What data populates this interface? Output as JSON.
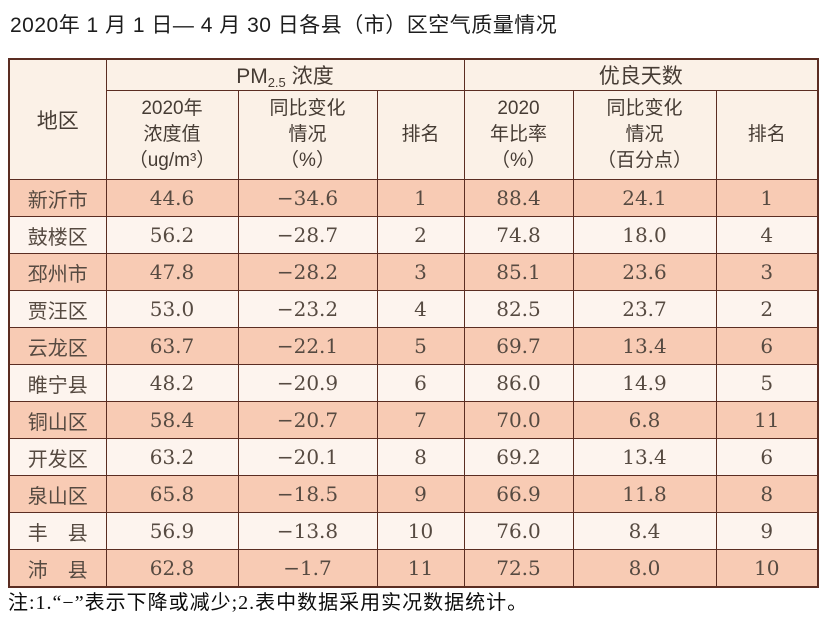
{
  "title": "2020年 1 月 1 日— 4 月 30 日各县（市）区空气质量情况",
  "table": {
    "header": {
      "region": "地区",
      "pm_group": {
        "prefix": "PM",
        "sub": "2.5",
        "suffix": "浓度"
      },
      "good_group": "优良天数",
      "pm_value": {
        "l1": "2020年",
        "l2": "浓度值",
        "l3": "（ug/m³）"
      },
      "pm_change": {
        "l1": "同比变化",
        "l2": "情况",
        "l3": "（%）"
      },
      "pm_rank": "排名",
      "good_ratio": {
        "l1": "2020",
        "l2": "年比率",
        "l3": "（%）"
      },
      "good_change": {
        "l1": "同比变化",
        "l2": "情况",
        "l3": "（百分点）"
      },
      "good_rank": "排名"
    },
    "rows": [
      {
        "region": "新沂市",
        "pm_value": "44.6",
        "pm_change": "−34.6",
        "pm_rank": "1",
        "good_ratio": "88.4",
        "good_change": "24.1",
        "good_rank": "1"
      },
      {
        "region": "鼓楼区",
        "pm_value": "56.2",
        "pm_change": "−28.7",
        "pm_rank": "2",
        "good_ratio": "74.8",
        "good_change": "18.0",
        "good_rank": "4"
      },
      {
        "region": "邳州市",
        "pm_value": "47.8",
        "pm_change": "−28.2",
        "pm_rank": "3",
        "good_ratio": "85.1",
        "good_change": "23.6",
        "good_rank": "3"
      },
      {
        "region": "贾汪区",
        "pm_value": "53.0",
        "pm_change": "−23.2",
        "pm_rank": "4",
        "good_ratio": "82.5",
        "good_change": "23.7",
        "good_rank": "2"
      },
      {
        "region": "云龙区",
        "pm_value": "63.7",
        "pm_change": "−22.1",
        "pm_rank": "5",
        "good_ratio": "69.7",
        "good_change": "13.4",
        "good_rank": "6"
      },
      {
        "region": "睢宁县",
        "pm_value": "48.2",
        "pm_change": "−20.9",
        "pm_rank": "6",
        "good_ratio": "86.0",
        "good_change": "14.9",
        "good_rank": "5"
      },
      {
        "region": "铜山区",
        "pm_value": "58.4",
        "pm_change": "−20.7",
        "pm_rank": "7",
        "good_ratio": "70.0",
        "good_change": "6.8",
        "good_rank": "11"
      },
      {
        "region": "开发区",
        "pm_value": "63.2",
        "pm_change": "−20.1",
        "pm_rank": "8",
        "good_ratio": "69.2",
        "good_change": "13.4",
        "good_rank": "6"
      },
      {
        "region": "泉山区",
        "pm_value": "65.8",
        "pm_change": "−18.5",
        "pm_rank": "9",
        "good_ratio": "66.9",
        "good_change": "11.8",
        "good_rank": "8"
      },
      {
        "region": "丰　县",
        "pm_value": "56.9",
        "pm_change": "−13.8",
        "pm_rank": "10",
        "good_ratio": "76.0",
        "good_change": "8.4",
        "good_rank": "9"
      },
      {
        "region": "沛　县",
        "pm_value": "62.8",
        "pm_change": "−1.7",
        "pm_rank": "11",
        "good_ratio": "72.5",
        "good_change": "8.0",
        "good_rank": "10"
      }
    ]
  },
  "footnote": "注:1.“−”表示下降或减少;2.表中数据采用实况数据统计。",
  "colors": {
    "border": "#5b2d22",
    "header_bg": "#fbf1e7",
    "row_odd": "#f8cbb4",
    "row_even": "#fdf4ee",
    "data_text": "#564a41",
    "header_text": "#463c34"
  }
}
